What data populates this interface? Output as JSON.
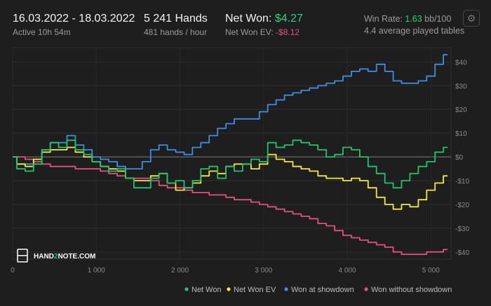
{
  "header": {
    "date_range": "16.03.2022 - 18.03.2022",
    "active": "Active 10h 54m",
    "hands": "5 241 Hands",
    "hands_per_hour": "481 hands / hour",
    "net_won_label": "Net Won: ",
    "net_won_value": "$4.27",
    "net_won_ev_label": "Net Won  EV: ",
    "net_won_ev_value": "-$8.12",
    "win_rate_label": "Win Rate: ",
    "win_rate_value": "1.63",
    "win_rate_unit": " bb/100",
    "avg_tables": "4.4 average played tables",
    "settings_icon": "gear-icon"
  },
  "logo": {
    "text_a": "HAND",
    "text_b": "2",
    "text_c": "NOTE.COM"
  },
  "colors": {
    "background": "#1e1e1f",
    "net_won": "#22c36b",
    "net_won_ev": "#f5e83b",
    "won_showdown": "#3c8ee0",
    "won_without_showdown": "#e0527a"
  },
  "chart_data": {
    "type": "line",
    "xlim": [
      0,
      5241
    ],
    "ylim": [
      -43,
      46
    ],
    "x_ticks": [
      0,
      1000,
      2000,
      3000,
      4000,
      5000
    ],
    "x_tick_labels": [
      "0",
      "1 000",
      "2 000",
      "3 000",
      "4 000",
      "5 000"
    ],
    "y_ticks": [
      40,
      30,
      20,
      10,
      0,
      -10,
      -20,
      -30,
      -40
    ],
    "y_tick_labels": [
      "$40",
      "$30",
      "$20",
      "$10",
      "$0",
      "-$10",
      "-$20",
      "-$30",
      "-$40"
    ],
    "grid": true,
    "legend_position": "bottom-right",
    "series": [
      {
        "name": "Net Won",
        "color": "#22c36b",
        "points": [
          [
            0,
            0
          ],
          [
            100,
            -5
          ],
          [
            200,
            -6
          ],
          [
            300,
            -3
          ],
          [
            400,
            3
          ],
          [
            500,
            6
          ],
          [
            600,
            4
          ],
          [
            700,
            7
          ],
          [
            800,
            3
          ],
          [
            900,
            1
          ],
          [
            1000,
            -2
          ],
          [
            1100,
            -4
          ],
          [
            1200,
            -6
          ],
          [
            1300,
            -5
          ],
          [
            1400,
            -9
          ],
          [
            1500,
            -13
          ],
          [
            1600,
            -13
          ],
          [
            1700,
            -9
          ],
          [
            1800,
            -7
          ],
          [
            1900,
            -11
          ],
          [
            2000,
            -10
          ],
          [
            2100,
            -13
          ],
          [
            2200,
            -10
          ],
          [
            2300,
            -5
          ],
          [
            2400,
            -4
          ],
          [
            2500,
            -9
          ],
          [
            2600,
            -4
          ],
          [
            2700,
            -6
          ],
          [
            2800,
            -3
          ],
          [
            2900,
            -1
          ],
          [
            3000,
            -2
          ],
          [
            3100,
            6
          ],
          [
            3200,
            4
          ],
          [
            3300,
            5
          ],
          [
            3400,
            7
          ],
          [
            3500,
            6
          ],
          [
            3600,
            5
          ],
          [
            3700,
            3
          ],
          [
            3800,
            0
          ],
          [
            3900,
            1
          ],
          [
            4000,
            4
          ],
          [
            4100,
            3
          ],
          [
            4200,
            0
          ],
          [
            4300,
            -4
          ],
          [
            4400,
            -7
          ],
          [
            4500,
            -11
          ],
          [
            4600,
            -13
          ],
          [
            4700,
            -10
          ],
          [
            4800,
            -7
          ],
          [
            4900,
            -4
          ],
          [
            5000,
            -2
          ],
          [
            5100,
            2
          ],
          [
            5200,
            4
          ]
        ]
      },
      {
        "name": "Net Won  EV",
        "color": "#f5e83b",
        "points": [
          [
            0,
            0
          ],
          [
            100,
            -3
          ],
          [
            200,
            -4
          ],
          [
            300,
            -1
          ],
          [
            400,
            2
          ],
          [
            500,
            3
          ],
          [
            600,
            3
          ],
          [
            700,
            4
          ],
          [
            800,
            2
          ],
          [
            900,
            0
          ],
          [
            1000,
            -2
          ],
          [
            1100,
            -4
          ],
          [
            1200,
            -5
          ],
          [
            1300,
            -6
          ],
          [
            1400,
            -9
          ],
          [
            1500,
            -10
          ],
          [
            1600,
            -10
          ],
          [
            1700,
            -8
          ],
          [
            1800,
            -7
          ],
          [
            1900,
            -11
          ],
          [
            2000,
            -14
          ],
          [
            2100,
            -13
          ],
          [
            2200,
            -11
          ],
          [
            2300,
            -8
          ],
          [
            2400,
            -6
          ],
          [
            2500,
            -7
          ],
          [
            2600,
            -4
          ],
          [
            2700,
            -3
          ],
          [
            2800,
            -3
          ],
          [
            2900,
            -5
          ],
          [
            3000,
            -3
          ],
          [
            3100,
            1
          ],
          [
            3200,
            -1
          ],
          [
            3300,
            -2
          ],
          [
            3400,
            -4
          ],
          [
            3500,
            -5
          ],
          [
            3600,
            -6
          ],
          [
            3700,
            -8
          ],
          [
            3800,
            -9
          ],
          [
            3900,
            -9
          ],
          [
            4000,
            -10
          ],
          [
            4100,
            -9
          ],
          [
            4200,
            -10
          ],
          [
            4300,
            -13
          ],
          [
            4400,
            -17
          ],
          [
            4500,
            -20
          ],
          [
            4600,
            -22
          ],
          [
            4700,
            -20
          ],
          [
            4800,
            -21
          ],
          [
            4900,
            -18
          ],
          [
            5000,
            -14
          ],
          [
            5100,
            -11
          ],
          [
            5200,
            -8
          ]
        ]
      },
      {
        "name": "Won at showdown",
        "color": "#3c8ee0",
        "points": [
          [
            0,
            0
          ],
          [
            100,
            -3
          ],
          [
            200,
            -3
          ],
          [
            300,
            -1
          ],
          [
            400,
            3
          ],
          [
            500,
            6
          ],
          [
            600,
            6
          ],
          [
            700,
            9
          ],
          [
            800,
            5
          ],
          [
            900,
            3
          ],
          [
            1000,
            0
          ],
          [
            1100,
            -1
          ],
          [
            1200,
            -2
          ],
          [
            1300,
            -4
          ],
          [
            1400,
            -5
          ],
          [
            1500,
            -5
          ],
          [
            1600,
            -2
          ],
          [
            1700,
            3
          ],
          [
            1800,
            5
          ],
          [
            1900,
            3
          ],
          [
            2000,
            2
          ],
          [
            2100,
            1
          ],
          [
            2200,
            4
          ],
          [
            2300,
            6
          ],
          [
            2400,
            9
          ],
          [
            2500,
            12
          ],
          [
            2600,
            14
          ],
          [
            2700,
            16
          ],
          [
            2800,
            16
          ],
          [
            2900,
            16
          ],
          [
            3000,
            19
          ],
          [
            3100,
            22
          ],
          [
            3200,
            24
          ],
          [
            3300,
            26
          ],
          [
            3400,
            27
          ],
          [
            3500,
            28
          ],
          [
            3600,
            29
          ],
          [
            3700,
            30
          ],
          [
            3800,
            31
          ],
          [
            3900,
            32
          ],
          [
            4000,
            34
          ],
          [
            4100,
            36
          ],
          [
            4200,
            37
          ],
          [
            4300,
            36
          ],
          [
            4400,
            39
          ],
          [
            4500,
            36
          ],
          [
            4600,
            32
          ],
          [
            4700,
            31
          ],
          [
            4800,
            31
          ],
          [
            4900,
            32
          ],
          [
            5000,
            34
          ],
          [
            5100,
            39
          ],
          [
            5200,
            43
          ]
        ]
      },
      {
        "name": "Won without showdown",
        "color": "#e0527a",
        "points": [
          [
            0,
            0
          ],
          [
            100,
            0
          ],
          [
            200,
            -1
          ],
          [
            300,
            -2
          ],
          [
            400,
            -3
          ],
          [
            500,
            -4
          ],
          [
            600,
            -4
          ],
          [
            700,
            -4
          ],
          [
            800,
            -5
          ],
          [
            900,
            -5
          ],
          [
            1000,
            -5
          ],
          [
            1100,
            -6
          ],
          [
            1200,
            -7
          ],
          [
            1300,
            -8
          ],
          [
            1400,
            -9
          ],
          [
            1500,
            -9
          ],
          [
            1600,
            -9
          ],
          [
            1700,
            -10
          ],
          [
            1800,
            -12
          ],
          [
            1900,
            -13
          ],
          [
            2000,
            -13
          ],
          [
            2100,
            -14
          ],
          [
            2200,
            -15
          ],
          [
            2300,
            -15
          ],
          [
            2400,
            -16
          ],
          [
            2500,
            -16
          ],
          [
            2600,
            -17
          ],
          [
            2700,
            -18
          ],
          [
            2800,
            -18
          ],
          [
            2900,
            -19
          ],
          [
            3000,
            -20
          ],
          [
            3100,
            -21
          ],
          [
            3200,
            -22
          ],
          [
            3300,
            -23
          ],
          [
            3400,
            -24
          ],
          [
            3500,
            -25
          ],
          [
            3600,
            -26
          ],
          [
            3700,
            -28
          ],
          [
            3800,
            -29
          ],
          [
            3900,
            -31
          ],
          [
            4000,
            -33
          ],
          [
            4100,
            -34
          ],
          [
            4200,
            -35
          ],
          [
            4300,
            -36
          ],
          [
            4400,
            -37
          ],
          [
            4500,
            -38
          ],
          [
            4600,
            -40
          ],
          [
            4700,
            -41
          ],
          [
            4800,
            -41
          ],
          [
            4900,
            -41
          ],
          [
            5000,
            -40
          ],
          [
            5100,
            -40
          ],
          [
            5200,
            -39
          ]
        ]
      }
    ]
  }
}
